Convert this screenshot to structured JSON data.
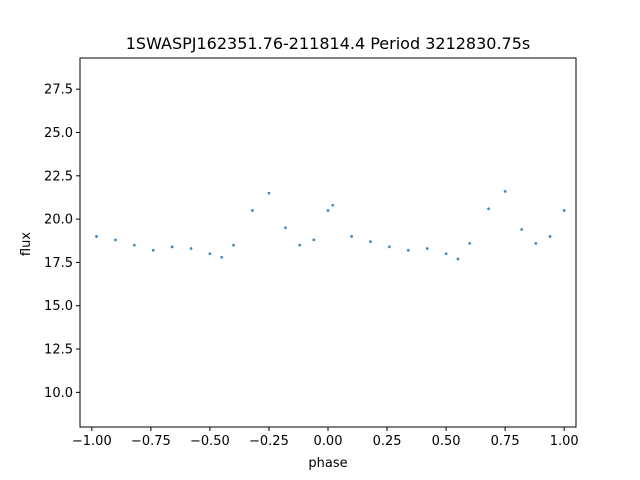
{
  "chart_data": {
    "type": "scatter",
    "title": "1SWASPJ162351.76-211814.4 Period 3212830.75s",
    "xlabel": "phase",
    "ylabel": "flux",
    "xlim": [
      -1.05,
      1.05
    ],
    "ylim": [
      8.0,
      29.3
    ],
    "x_ticks": [
      -1.0,
      -0.75,
      -0.5,
      -0.25,
      0.0,
      0.25,
      0.5,
      0.75,
      1.0
    ],
    "x_tick_labels": [
      "−1.00",
      "−0.75",
      "−0.50",
      "−0.25",
      "0.00",
      "0.25",
      "0.50",
      "0.75",
      "1.00"
    ],
    "y_ticks": [
      10.0,
      12.5,
      15.0,
      17.5,
      20.0,
      22.5,
      25.0,
      27.5
    ],
    "y_tick_labels": [
      "10.0",
      "12.5",
      "15.0",
      "17.5",
      "20.0",
      "22.5",
      "25.0",
      "27.5"
    ],
    "grid": false,
    "point_color": "#1f77b4",
    "series": [
      {
        "x": [
          -0.98,
          -0.9,
          -0.82,
          -0.74,
          -0.66,
          -0.58,
          -0.5,
          -0.45,
          -0.4,
          -0.32,
          -0.25,
          -0.18,
          -0.12,
          -0.06,
          0.0,
          0.02,
          0.1,
          0.18,
          0.26,
          0.34,
          0.42,
          0.5,
          0.55,
          0.6,
          0.68,
          0.75,
          0.82,
          0.88,
          0.94,
          1.0
        ],
        "y": [
          19.0,
          18.8,
          18.5,
          18.2,
          18.4,
          18.3,
          18.0,
          17.8,
          18.5,
          20.5,
          21.5,
          19.5,
          18.5,
          18.8,
          20.5,
          20.8,
          19.0,
          18.7,
          18.4,
          18.2,
          18.3,
          18.0,
          17.7,
          18.6,
          20.6,
          21.6,
          19.4,
          18.6,
          19.0,
          20.5
        ]
      }
    ]
  }
}
